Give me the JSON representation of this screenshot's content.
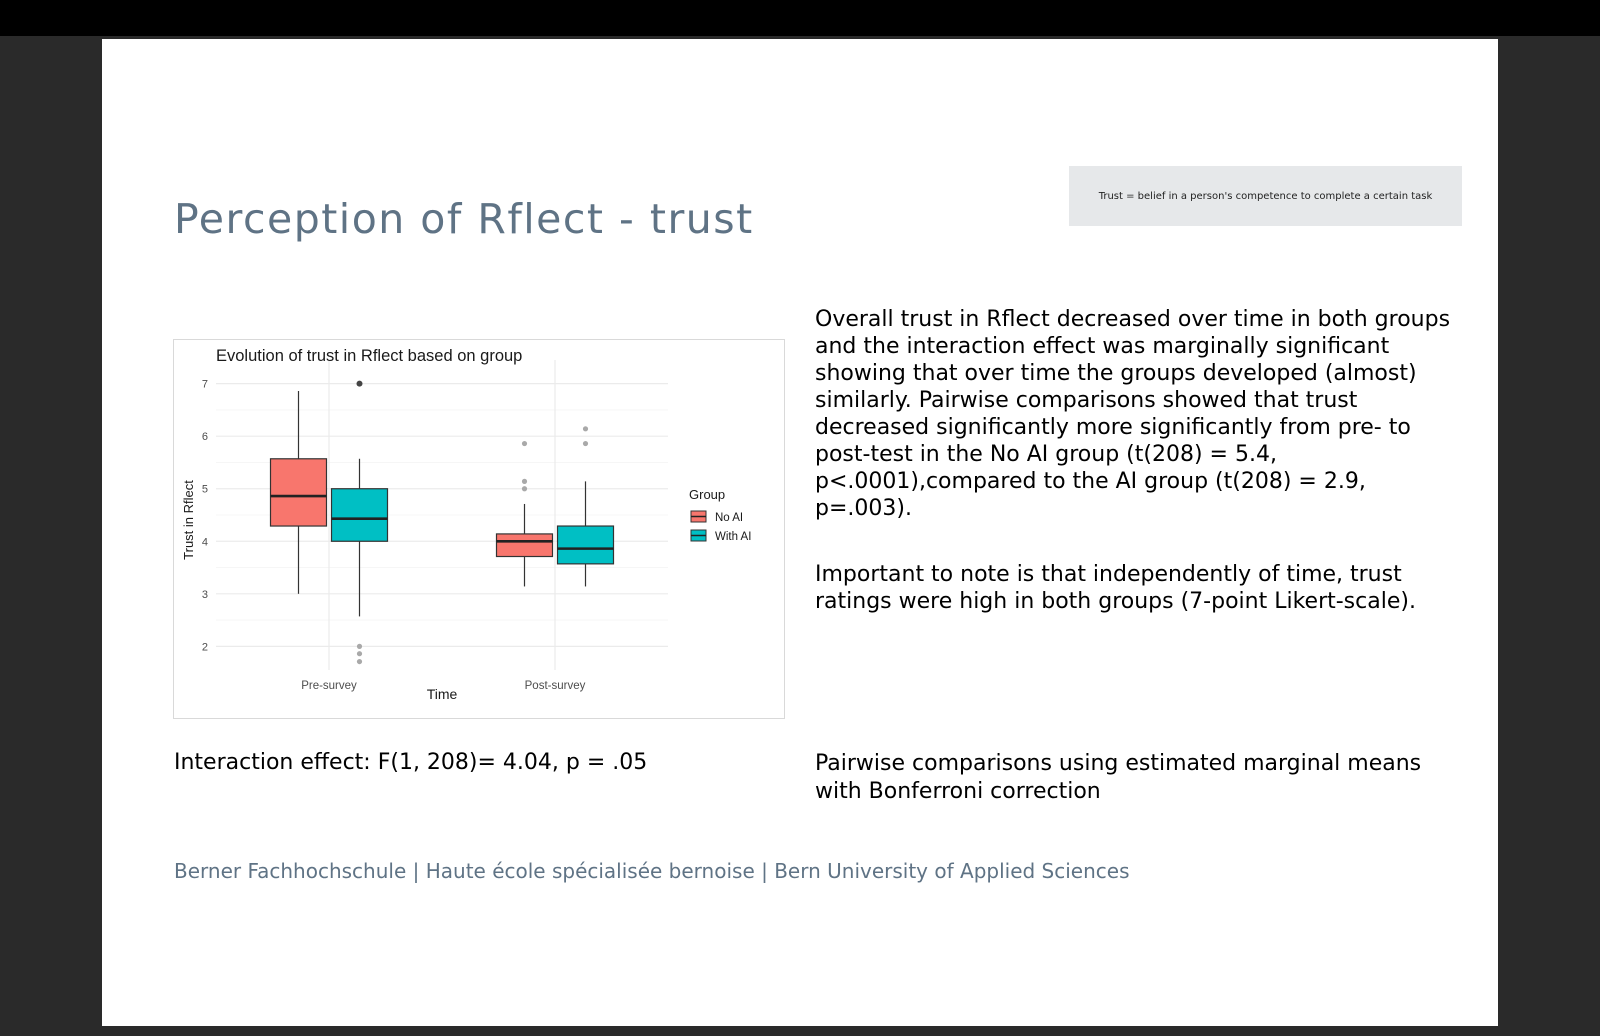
{
  "slide": {
    "title": "Perception of Rflect - trust",
    "note": "Trust = belief in a person's competence to complete a certain task",
    "paragraph1": "Overall trust in Rflect decreased over time in both groups and the interaction effect was marginally significant showing that over time the groups developed (almost) similarly. Pairwise comparisons showed that trust decreased significantly more significantly from pre- to post-test in the No AI group (t(208) = 5.4, p<.0001),compared to the AI group (t(208) = 2.9, p=.003).",
    "paragraph2": "Important to note is that independently of time, trust ratings were high in both groups (7-point Likert-scale).",
    "interaction": "Interaction effect: F(1, 208)= 4.04, p = .05",
    "pairwise": "Pairwise comparisons using estimated marginal means with Bonferroni correction",
    "footer": "Berner Fachhochschule | Haute école spécialisée bernoise | Bern University of Applied Sciences"
  },
  "chart_data": {
    "type": "box",
    "title": "Evolution of trust in Rflect based on group",
    "xlabel": "Time",
    "ylabel": "Trust in Rflect",
    "categories": [
      "Pre-survey",
      "Post-survey"
    ],
    "ylim": [
      1.55,
      7.45
    ],
    "yticks": [
      2,
      3,
      4,
      5,
      6,
      7
    ],
    "grid": true,
    "legend": {
      "title": "Group",
      "position": "right"
    },
    "series": [
      {
        "name": "No AI",
        "color": "#F8766D",
        "boxes": [
          {
            "min": 3.0,
            "q1": 4.29,
            "median": 4.86,
            "q3": 5.57,
            "max": 6.86,
            "outliers": []
          },
          {
            "min": 3.14,
            "q1": 3.71,
            "median": 4.0,
            "q3": 4.14,
            "max": 4.71,
            "outliers": [
              5.0,
              5.14,
              5.86
            ]
          }
        ]
      },
      {
        "name": "With AI",
        "color": "#00BFC4",
        "boxes": [
          {
            "min": 2.57,
            "q1": 4.0,
            "median": 4.43,
            "q3": 5.0,
            "max": 5.57,
            "outliers": [
              7.0,
              2.0,
              1.86,
              1.71
            ]
          },
          {
            "min": 3.14,
            "q1": 3.57,
            "median": 3.86,
            "q3": 4.29,
            "max": 5.14,
            "outliers": [
              5.86,
              6.14
            ]
          }
        ]
      }
    ]
  }
}
